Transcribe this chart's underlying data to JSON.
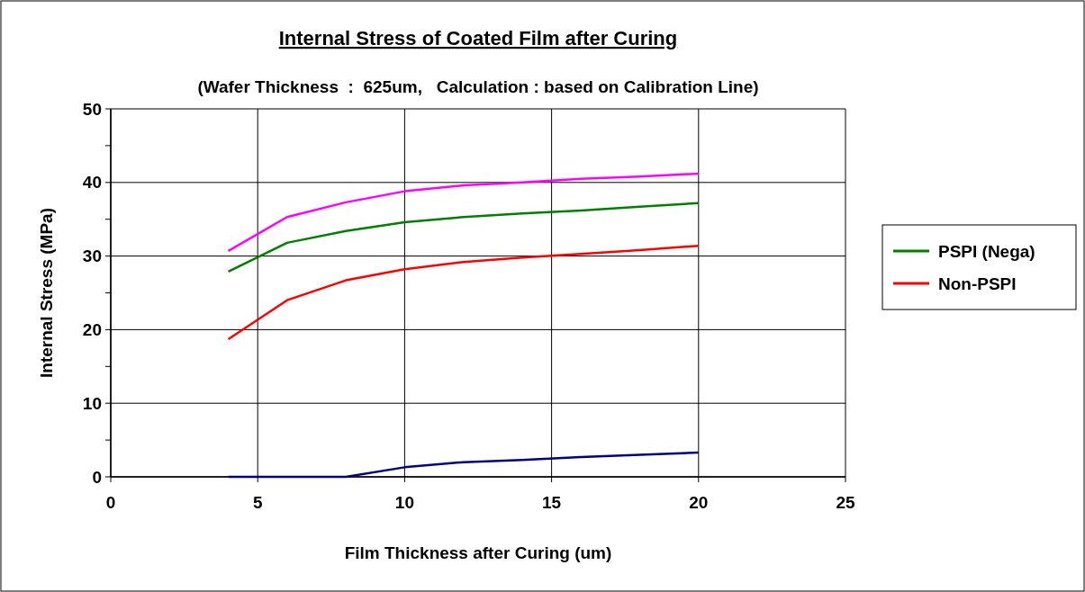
{
  "chart_data": {
    "type": "line",
    "title": "Internal Stress of Coated Film after Curing",
    "subtitle": "(Wafer Thickness  :  625um,   Calculation : based on Calibration Line)",
    "xlabel": "Film Thickness after Curing (um)",
    "ylabel": "Internal Stress (MPa)",
    "x": [
      4,
      6,
      8,
      10,
      12,
      14,
      16,
      18,
      20
    ],
    "series": [
      {
        "color": "#000080",
        "values": [
          0,
          0,
          0,
          1.3,
          2.0,
          2.3,
          2.7,
          3.0,
          3.3
        ]
      },
      {
        "color": "#ff00ff",
        "values": [
          30.7,
          35.3,
          37.3,
          38.8,
          39.6,
          40.0,
          40.5,
          40.8,
          41.2
        ]
      },
      {
        "name": "PSPI (Nega)",
        "color": "#008000",
        "values": [
          27.9,
          31.8,
          33.4,
          34.6,
          35.3,
          35.8,
          36.2,
          36.7,
          37.2
        ]
      },
      {
        "name": "Non-PSPI",
        "color": "#ff0000",
        "values": [
          18.7,
          24.0,
          26.7,
          28.2,
          29.2,
          29.8,
          30.3,
          30.8,
          31.4
        ]
      }
    ],
    "xlim": [
      0,
      25
    ],
    "xticks": [
      0,
      5,
      10,
      15,
      20,
      25
    ],
    "ylim": [
      0,
      50
    ],
    "yticks": [
      0,
      {
        "value": 5,
        "label": null
      },
      10,
      {
        "value": 15,
        "label": null
      },
      20,
      {
        "value": 25,
        "label": null
      },
      30,
      {
        "value": 35,
        "label": null
      },
      40,
      {
        "value": 45,
        "label": null
      },
      50
    ],
    "grid": true,
    "legend": "right",
    "marker": "none",
    "line_style": "solid"
  }
}
